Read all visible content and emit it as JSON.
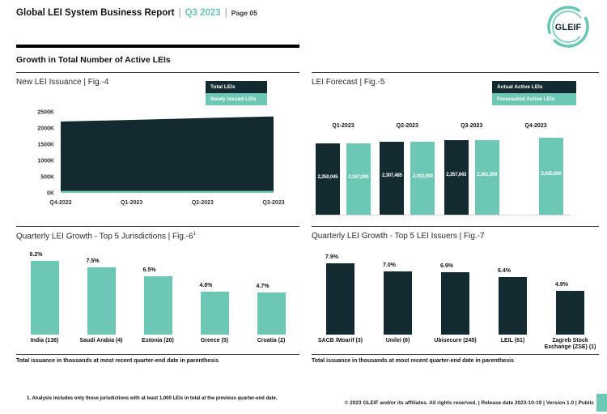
{
  "header": {
    "title": "Global LEI System Business Report",
    "divider": "|",
    "period": "Q3 2023",
    "page_label": "Page 05",
    "logo_text": "GLEIF"
  },
  "section": {
    "title": "Growth in Total Number of Active LEIs"
  },
  "colors": {
    "teal": "#6CC7B5",
    "dark": "#132B30"
  },
  "chart_data": [
    {
      "id": "fig4",
      "type": "area",
      "title": "New LEI Issuance | Fig.-4",
      "legend": [
        {
          "label": "Total LEIs",
          "color": "#132B30"
        },
        {
          "label": "Newly Issued LEIs",
          "color": "#6CC7B5"
        }
      ],
      "x": [
        "Q4-2022",
        "Q1-2023",
        "Q2-2023",
        "Q3-2023"
      ],
      "series": [
        {
          "name": "Total LEIs",
          "color": "#132B30",
          "values": [
            2200000,
            2250045,
            2307485,
            2357643
          ]
        },
        {
          "name": "Newly Issued LEIs",
          "color": "#6CC7B5",
          "values": [
            60000,
            60000,
            60000,
            60000
          ]
        }
      ],
      "y_ticks": [
        "2500K",
        "2000K",
        "1500K",
        "1000K",
        "500K",
        "0K"
      ],
      "ylim": [
        0,
        2500000
      ],
      "grid": false,
      "legend_position": "top-right"
    },
    {
      "id": "fig5",
      "type": "bar",
      "title": "LEI Forecast | Fig.-5",
      "legend": [
        {
          "label": "Actual Active LEIs",
          "color": "#132B30"
        },
        {
          "label": "Forecasted Active LEIs",
          "color": "#6CC7B5"
        }
      ],
      "categories": [
        "Q1-2023",
        "Q2-2023",
        "Q3-2023",
        "Q4-2023"
      ],
      "series": [
        {
          "name": "Actual Active LEIs",
          "color": "#132B30",
          "values": [
            2250045,
            2307485,
            2357643,
            null
          ],
          "labels": [
            "2,250,045",
            "2,307,485",
            "2,357,643",
            null
          ]
        },
        {
          "name": "Forecasted Active LEIs",
          "color": "#6CC7B5",
          "values": [
            2247000,
            2302000,
            2361000,
            2425000
          ],
          "labels": [
            "2,247,000",
            "2,302,000",
            "2,361,000",
            "2,425,000"
          ]
        }
      ],
      "ylim": [
        0,
        2425000
      ],
      "value_labels_inside": true,
      "legend_position": "top-right"
    },
    {
      "id": "fig6",
      "type": "bar",
      "title": "Quarterly LEI Growth - Top 5 Jurisdictions | Fig.-6",
      "title_superscript": "1",
      "categories": [
        "India (138)",
        "Saudi Arabia (4)",
        "Estonia (20)",
        "Greece (5)",
        "Croatia (2)"
      ],
      "values": [
        8.2,
        7.5,
        6.5,
        4.8,
        4.7
      ],
      "value_labels": [
        "8.2%",
        "7.5%",
        "6.5%",
        "4.8%",
        "4.7%"
      ],
      "bar_color": "#6CC7B5",
      "ylim": [
        0,
        9
      ],
      "caption": "Total issuance in thousands at most recent quarter-end date in parenthesis"
    },
    {
      "id": "fig7",
      "type": "bar",
      "title": "Quarterly LEI Growth - Top 5 LEI Issuers | Fig.-7",
      "categories": [
        "SACB /Moarif (3)",
        "Unilei (8)",
        "Ubisecure (245)",
        "LEIL (61)",
        "Zagreb Stock Exchange (ZSE) (1)"
      ],
      "values": [
        7.9,
        7.0,
        6.9,
        6.4,
        4.9
      ],
      "value_labels": [
        "7.9%",
        "7.0%",
        "6.9%",
        "6.4%",
        "4.9%"
      ],
      "bar_color": "#132B30",
      "ylim": [
        0,
        9
      ],
      "caption": "Total issuance in thousands at most recent quarter-end date in parenthesis"
    }
  ],
  "footer": {
    "footnote": "1. Analysis includes only those jurisdictions with at least 1,000 LEIs in total at the previous quarter-end date.",
    "copyright": "© 2023 GLEIF and/or its affiliates. All rights reserved. | Release date 2023-10-19 | Version 1.0 | Public"
  }
}
